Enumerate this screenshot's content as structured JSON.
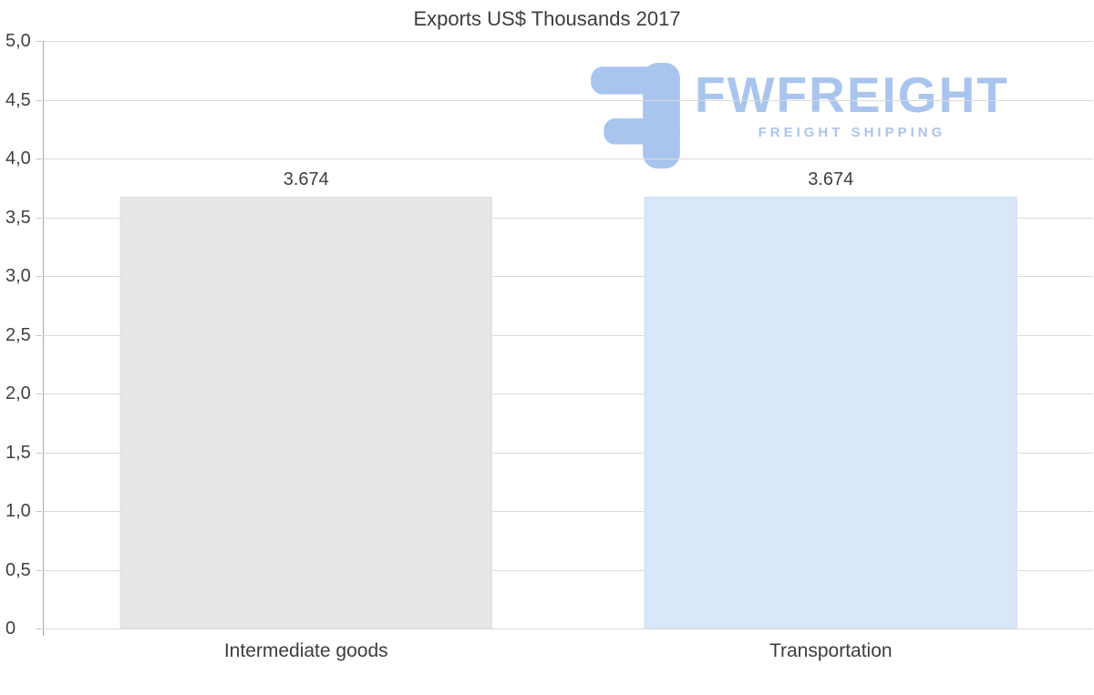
{
  "chart": {
    "title": "Exports US$ Thousands 2017"
  },
  "chart_data": {
    "type": "bar",
    "title": "Exports US$ Thousands 2017",
    "categories": [
      "Intermediate goods",
      "Transportation"
    ],
    "values": [
      3.674,
      3.674
    ],
    "value_labels": [
      "3.674",
      "3.674"
    ],
    "bar_colors": [
      "#e7e7e7",
      "#d9e7f8"
    ],
    "bar_borders": [
      "#dedede",
      "#cfe0f4"
    ],
    "xlabel": "",
    "ylabel": "",
    "ylim": [
      0,
      5
    ],
    "yticks": [
      0,
      0.5,
      1,
      1.5,
      2,
      2.5,
      3,
      3.5,
      4,
      4.5,
      5
    ],
    "ytick_labels": [
      "0",
      "0,5",
      "1,0",
      "1,5",
      "2,0",
      "2,5",
      "3,0",
      "3,5",
      "4,0",
      "4,5",
      "5,0"
    ],
    "grid": true,
    "legend": "none"
  },
  "watermark": {
    "brand": "FWFREIGHT",
    "tagline": "FREIGHT SHIPPING",
    "color": "#a9c5ee"
  },
  "colors": {
    "title": "#3d3d3d",
    "axis_labels": "#404040",
    "gridline": "#dbdbdb",
    "axis_line": "#a6a6a6",
    "background": "#ffffff"
  }
}
